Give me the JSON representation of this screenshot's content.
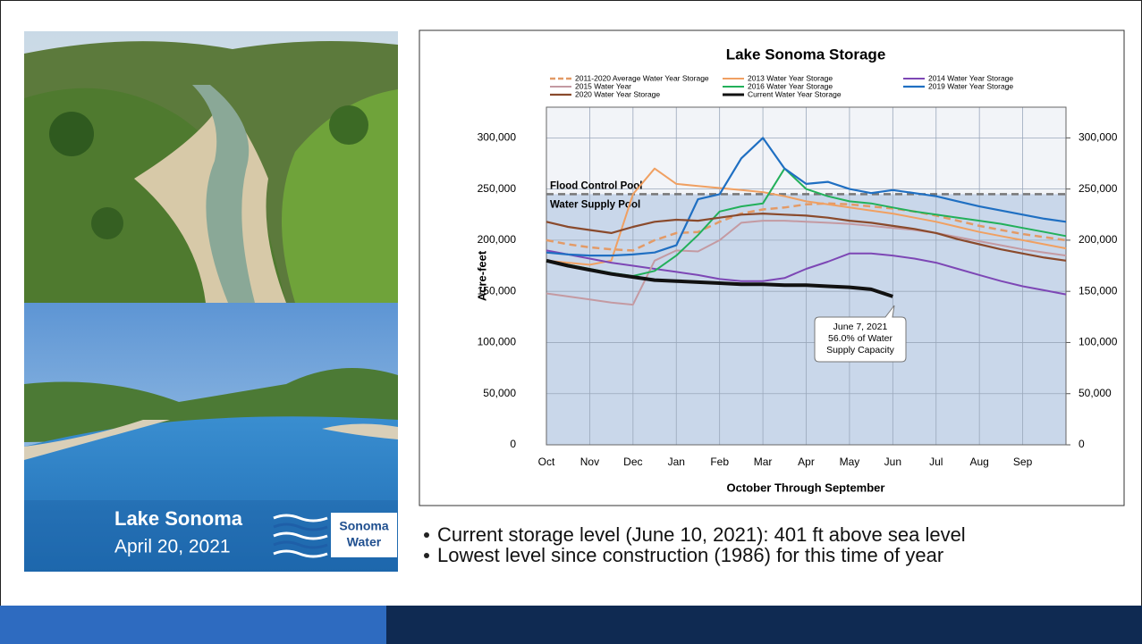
{
  "slide": {
    "photo_caption": {
      "title": "Lake Sonoma",
      "date": "April 20, 2021"
    },
    "logo": [
      "Sonoma",
      "Water"
    ],
    "bullets": [
      "Current storage level (June 10, 2021): 401 ft above sea level",
      "Lowest level since construction (1986) for this time of year"
    ]
  },
  "chart_data": {
    "type": "line",
    "title": "Lake Sonoma Storage",
    "x_label": "October Through September",
    "y_label": "Acre-feet",
    "legend": "top",
    "grid": true,
    "xlim": [
      0,
      12
    ],
    "xticks": [
      {
        "value": 0,
        "label": "Oct"
      },
      {
        "value": 1,
        "label": "Nov"
      },
      {
        "value": 2,
        "label": "Dec"
      },
      {
        "value": 3,
        "label": "Jan"
      },
      {
        "value": 4,
        "label": "Feb"
      },
      {
        "value": 5,
        "label": "Mar"
      },
      {
        "value": 6,
        "label": "Apr"
      },
      {
        "value": 7,
        "label": "May"
      },
      {
        "value": 8,
        "label": "Jun"
      },
      {
        "value": 9,
        "label": "Jul"
      },
      {
        "value": 10,
        "label": "Aug"
      },
      {
        "value": 11,
        "label": "Sep"
      }
    ],
    "ylim": [
      0,
      330000
    ],
    "yticks": [
      0,
      {
        "value": 50000,
        "label": "50,000"
      },
      {
        "value": 100000,
        "label": "100,000"
      },
      {
        "value": 150000,
        "label": "150,000"
      },
      {
        "value": 200000,
        "label": "200,000"
      },
      {
        "value": 250000,
        "label": "250,000"
      },
      {
        "value": 300000,
        "label": "300,000"
      }
    ],
    "y2lim": [
      0,
      330000
    ],
    "y2ticks": [
      0,
      {
        "value": 50000,
        "label": "50,000"
      },
      {
        "value": 100000,
        "label": "100,000"
      },
      {
        "value": 150000,
        "label": "150,000"
      },
      {
        "value": 200000,
        "label": "200,000"
      },
      {
        "value": 250000,
        "label": "250,000"
      },
      {
        "value": 300000,
        "label": "300,000"
      }
    ],
    "reference_line": {
      "value": 245000,
      "label": "Flood Control Pool",
      "below_label": "Water Supply Pool"
    },
    "annotation": [
      "June 7, 2021",
      "56.0% of Water",
      "Supply Capacity"
    ],
    "x": [
      0,
      0.5,
      1,
      1.5,
      2,
      2.5,
      3,
      3.5,
      4,
      4.5,
      5,
      5.5,
      6,
      6.5,
      7,
      7.5,
      8,
      8.5,
      9,
      9.5,
      10,
      10.5,
      11,
      11.5,
      12
    ],
    "series": [
      {
        "name": "2011-2020 Average Water Year Storage",
        "color": "#e39a66",
        "dash": true,
        "line_width": 2.5,
        "values": [
          200000,
          196000,
          193000,
          191000,
          190000,
          200000,
          207000,
          208000,
          218000,
          226000,
          230000,
          232000,
          235000,
          236000,
          235000,
          233000,
          231000,
          228000,
          224000,
          219000,
          214000,
          210000,
          206000,
          203000,
          200000
        ]
      },
      {
        "name": "2013 Water Year Storage",
        "color": "#f0a062",
        "dash": false,
        "line_width": 2,
        "values": [
          180000,
          178000,
          176000,
          180000,
          245000,
          270000,
          255000,
          253000,
          251000,
          249000,
          247000,
          243000,
          238000,
          235000,
          232000,
          229000,
          226000,
          222000,
          218000,
          213000,
          208000,
          204000,
          200000,
          196000,
          192000
        ]
      },
      {
        "name": "2014 Water Year Storage",
        "color": "#7d47b5",
        "dash": false,
        "line_width": 2,
        "values": [
          190000,
          186000,
          182000,
          178000,
          175000,
          172000,
          169000,
          166000,
          162000,
          160000,
          160000,
          163000,
          172000,
          179000,
          187000,
          187000,
          185000,
          182000,
          178000,
          172000,
          166000,
          160000,
          155000,
          151000,
          147000
        ]
      },
      {
        "name": "2015 Water Year",
        "color": "#c49aa2",
        "dash": false,
        "line_width": 2,
        "values": [
          148000,
          145000,
          142000,
          139000,
          137000,
          180000,
          190000,
          189000,
          200000,
          217000,
          219000,
          219000,
          218000,
          217000,
          216000,
          214000,
          212000,
          210000,
          207000,
          203000,
          199000,
          195000,
          191000,
          188000,
          185000
        ]
      },
      {
        "name": "2016 Water Year Storage",
        "color": "#22b05a",
        "dash": false,
        "line_width": 2,
        "values": [
          180000,
          176000,
          172000,
          168000,
          165000,
          170000,
          185000,
          205000,
          228000,
          233000,
          236000,
          270000,
          250000,
          243000,
          238000,
          236000,
          232000,
          228000,
          225000,
          222000,
          219000,
          216000,
          212000,
          208000,
          204000
        ]
      },
      {
        "name": "2019 Water Year Storage",
        "color": "#1f6fc2",
        "dash": false,
        "line_width": 2.2,
        "values": [
          188000,
          186000,
          185000,
          185000,
          186000,
          188000,
          195000,
          240000,
          245000,
          280000,
          300000,
          270000,
          255000,
          257000,
          250000,
          246000,
          249000,
          246000,
          243000,
          238000,
          233000,
          229000,
          225000,
          221000,
          218000
        ]
      },
      {
        "name": "2020 Water Year Storage",
        "color": "#8a4a2c",
        "dash": false,
        "line_width": 2.2,
        "values": [
          218000,
          213000,
          210000,
          207000,
          213000,
          218000,
          220000,
          219000,
          222000,
          225000,
          226000,
          225000,
          224000,
          222000,
          219000,
          217000,
          214000,
          211000,
          207000,
          201000,
          196000,
          191000,
          187000,
          183000,
          180000
        ]
      },
      {
        "name": "Current Water Year Storage",
        "color": "#111111",
        "dash": false,
        "line_width": 4,
        "values": [
          180000,
          175000,
          171000,
          167000,
          164000,
          161000,
          160000,
          159000,
          158000,
          157000,
          157000,
          156000,
          156000,
          155000,
          154000,
          152000,
          145000,
          null,
          null,
          null,
          null,
          null,
          null,
          null,
          null
        ]
      }
    ]
  }
}
